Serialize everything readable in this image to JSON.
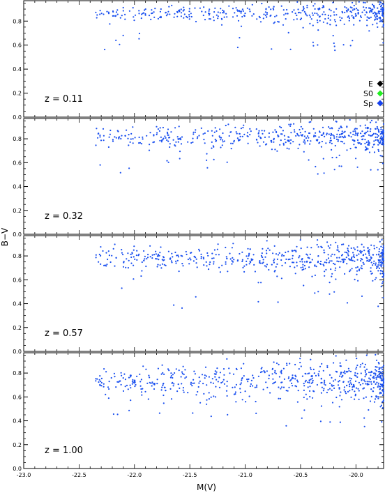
{
  "chart_data": {
    "type": "scatter",
    "xlabel": "M(V)",
    "ylabel": "B−V",
    "xlim": [
      -23.0,
      -19.75
    ],
    "ylim": [
      0.0,
      0.97
    ],
    "x_ticks": [
      "-23.0",
      "-22.5",
      "-22.0",
      "-21.5",
      "-21.0",
      "-20.5",
      "-20.0"
    ],
    "y_ticks": [
      "0.0",
      "0.2",
      "0.4",
      "0.6",
      "0.8",
      "1.0"
    ],
    "y_ticks_lower": [
      "0.0",
      "0.2",
      "0.4",
      "0.6",
      "0.8"
    ],
    "legend": {
      "placement": "right, top panel",
      "entries": [
        {
          "label": "E",
          "color": "#000000"
        },
        {
          "label": "S0",
          "color": "#22ee22"
        },
        {
          "label": "Sp",
          "color": "#1540ee"
        }
      ]
    },
    "colors": {
      "E": "#000000",
      "S0": "#22ee22",
      "Sp": "#1540ee",
      "field": "#1a50f0"
    },
    "panels": [
      {
        "label": "z = 0.11",
        "E": [
          [
            -22.72,
            0.88
          ],
          [
            -22.7,
            0.92
          ],
          [
            -22.66,
            0.9
          ],
          [
            -22.61,
            0.91
          ],
          [
            -22.56,
            0.92
          ],
          [
            -22.42,
            0.91
          ],
          [
            -22.36,
            0.9
          ],
          [
            -22.3,
            0.93
          ],
          [
            -22.21,
            0.92
          ],
          [
            -22.1,
            0.93
          ],
          [
            -21.98,
            0.92
          ],
          [
            -21.85,
            0.92
          ],
          [
            -21.74,
            0.93
          ],
          [
            -21.66,
            0.92
          ],
          [
            -21.56,
            0.9
          ],
          [
            -21.45,
            0.92
          ],
          [
            -21.35,
            0.93
          ],
          [
            -21.25,
            0.92
          ],
          [
            -21.13,
            0.91
          ],
          [
            -21.02,
            0.9
          ],
          [
            -20.96,
            0.93
          ],
          [
            -20.86,
            0.91
          ],
          [
            -20.75,
            0.9
          ],
          [
            -20.65,
            0.83
          ],
          [
            -20.55,
            0.88
          ],
          [
            -20.4,
            0.9
          ],
          [
            -20.3,
            0.92
          ],
          [
            -20.15,
            0.89
          ],
          [
            -20.0,
            0.9
          ],
          [
            -19.85,
            0.85
          ],
          [
            -21.2,
            0.78
          ],
          [
            -20.92,
            0.76
          ],
          [
            -20.45,
            0.75
          ]
        ],
        "S0": [
          [
            -22.6,
            0.86
          ],
          [
            -21.9,
            0.86
          ],
          [
            -21.55,
            0.86
          ],
          [
            -21.38,
            0.9
          ],
          [
            -21.05,
            0.84
          ],
          [
            -20.82,
            0.85
          ],
          [
            -20.58,
            0.86
          ],
          [
            -20.36,
            0.8
          ],
          [
            -20.1,
            0.83
          ],
          [
            -19.92,
            0.8
          ],
          [
            -20.78,
            0.77
          ]
        ],
        "Sp": [
          [
            -22.27,
            0.77
          ],
          [
            -21.93,
            0.76
          ],
          [
            -21.7,
            0.82
          ],
          [
            -21.4,
            0.84
          ],
          [
            -21.22,
            0.86
          ],
          [
            -21.05,
            0.8
          ],
          [
            -20.88,
            0.86
          ],
          [
            -20.73,
            0.87
          ],
          [
            -20.62,
            0.82
          ],
          [
            -20.45,
            0.84
          ],
          [
            -20.3,
            0.85
          ],
          [
            -20.18,
            0.87
          ],
          [
            -20.05,
            0.8
          ],
          [
            -19.9,
            0.82
          ],
          [
            -20.55,
            0.66
          ],
          [
            -21.6,
            0.87
          ],
          [
            -20.5,
            0.9
          ]
        ]
      },
      {
        "label": "z = 0.32",
        "E": [
          [
            -22.75,
            0.82
          ],
          [
            -22.68,
            0.7
          ],
          [
            -22.45,
            0.85
          ],
          [
            -22.38,
            0.88
          ],
          [
            -22.3,
            0.86
          ],
          [
            -22.22,
            0.87
          ],
          [
            -22.12,
            0.88
          ],
          [
            -22.03,
            0.86
          ],
          [
            -21.9,
            0.87
          ],
          [
            -21.8,
            0.88
          ],
          [
            -21.66,
            0.86
          ],
          [
            -21.52,
            0.85
          ],
          [
            -21.41,
            0.87
          ],
          [
            -21.3,
            0.86
          ],
          [
            -21.18,
            0.84
          ],
          [
            -21.06,
            0.86
          ],
          [
            -20.94,
            0.85
          ],
          [
            -20.83,
            0.85
          ],
          [
            -20.72,
            0.83
          ],
          [
            -20.6,
            0.82
          ],
          [
            -20.5,
            0.84
          ],
          [
            -20.4,
            0.86
          ],
          [
            -20.28,
            0.83
          ],
          [
            -20.18,
            0.82
          ],
          [
            -20.05,
            0.85
          ],
          [
            -19.92,
            0.84
          ],
          [
            -21.45,
            0.46
          ],
          [
            -21.05,
            0.72
          ],
          [
            -20.62,
            0.8
          ],
          [
            -20.0,
            0.78
          ]
        ],
        "S0": [
          [
            -22.0,
            0.88
          ],
          [
            -21.85,
            0.62
          ],
          [
            -21.57,
            0.82
          ],
          [
            -21.3,
            0.78
          ],
          [
            -21.1,
            0.84
          ],
          [
            -20.82,
            0.79
          ],
          [
            -20.57,
            0.7
          ],
          [
            -20.3,
            0.78
          ],
          [
            -20.15,
            0.8
          ],
          [
            -19.95,
            0.76
          ],
          [
            -21.7,
            0.68
          ]
        ],
        "Sp": [
          [
            -22.5,
            0.56
          ],
          [
            -21.95,
            0.82
          ],
          [
            -21.76,
            0.74
          ],
          [
            -21.62,
            0.71
          ],
          [
            -21.48,
            0.6
          ],
          [
            -21.36,
            0.79
          ],
          [
            -21.24,
            0.77
          ],
          [
            -21.12,
            0.76
          ],
          [
            -21.0,
            0.79
          ],
          [
            -20.86,
            0.74
          ],
          [
            -20.74,
            0.78
          ],
          [
            -20.62,
            0.8
          ],
          [
            -20.47,
            0.79
          ],
          [
            -20.33,
            0.81
          ],
          [
            -20.2,
            0.76
          ],
          [
            -20.06,
            0.83
          ],
          [
            -19.88,
            0.76
          ],
          [
            -21.04,
            0.6
          ],
          [
            -20.92,
            0.68
          ]
        ]
      },
      {
        "label": "z = 0.57",
        "E": [
          [
            -22.98,
            0.71
          ],
          [
            -22.92,
            0.62
          ],
          [
            -22.62,
            0.87
          ],
          [
            -22.4,
            0.76
          ],
          [
            -22.35,
            0.78
          ],
          [
            -22.28,
            0.85
          ],
          [
            -22.22,
            0.84
          ],
          [
            -22.15,
            0.83
          ],
          [
            -22.05,
            0.87
          ],
          [
            -21.92,
            0.86
          ],
          [
            -21.8,
            0.84
          ],
          [
            -21.7,
            0.82
          ],
          [
            -21.58,
            0.85
          ],
          [
            -21.46,
            0.82
          ],
          [
            -21.35,
            0.86
          ],
          [
            -21.25,
            0.81
          ],
          [
            -21.1,
            0.83
          ],
          [
            -20.98,
            0.8
          ],
          [
            -20.86,
            0.84
          ],
          [
            -20.75,
            0.79
          ],
          [
            -20.64,
            0.82
          ],
          [
            -20.52,
            0.8
          ],
          [
            -20.4,
            0.78
          ],
          [
            -20.28,
            0.77
          ],
          [
            -20.17,
            0.79
          ],
          [
            -20.05,
            0.76
          ],
          [
            -19.92,
            0.74
          ],
          [
            -21.44,
            0.46
          ],
          [
            -20.7,
            0.61
          ],
          [
            -21.0,
            0.72
          ],
          [
            -20.3,
            0.72
          ]
        ],
        "S0": [
          [
            -22.12,
            0.76
          ],
          [
            -21.8,
            0.78
          ],
          [
            -21.64,
            0.6
          ],
          [
            -21.5,
            0.74
          ],
          [
            -21.28,
            0.72
          ],
          [
            -21.08,
            0.79
          ],
          [
            -20.93,
            0.76
          ],
          [
            -20.71,
            0.75
          ],
          [
            -20.44,
            0.8
          ],
          [
            -20.14,
            0.78
          ],
          [
            -19.84,
            0.77
          ],
          [
            -21.3,
            0.65
          ]
        ],
        "Sp": [
          [
            -21.9,
            0.67
          ],
          [
            -21.78,
            0.71
          ],
          [
            -21.66,
            0.74
          ],
          [
            -21.54,
            0.8
          ],
          [
            -21.42,
            0.68
          ],
          [
            -21.3,
            0.76
          ],
          [
            -21.18,
            0.8
          ],
          [
            -21.06,
            0.72
          ],
          [
            -20.94,
            0.88
          ],
          [
            -20.82,
            0.8
          ],
          [
            -20.7,
            0.9
          ],
          [
            -20.58,
            0.77
          ],
          [
            -20.46,
            0.74
          ],
          [
            -20.34,
            0.77
          ],
          [
            -20.2,
            0.7
          ],
          [
            -21.7,
            0.62
          ],
          [
            -21.12,
            0.66
          ],
          [
            -20.88,
            0.6
          ],
          [
            -20.64,
            0.66
          ],
          [
            -21.58,
            0.82
          ],
          [
            -20.0,
            0.72
          ],
          [
            -19.86,
            0.78
          ]
        ]
      },
      {
        "label": "z = 1.00",
        "E": [
          [
            -22.7,
            0.55
          ],
          [
            -22.36,
            0.81
          ],
          [
            -22.3,
            0.78
          ],
          [
            -22.22,
            0.76
          ],
          [
            -22.15,
            0.8
          ],
          [
            -22.05,
            0.7
          ],
          [
            -21.95,
            0.68
          ],
          [
            -21.86,
            0.8
          ],
          [
            -21.72,
            0.75
          ],
          [
            -21.6,
            0.7
          ],
          [
            -21.46,
            0.72
          ],
          [
            -21.34,
            0.78
          ],
          [
            -21.24,
            0.82
          ],
          [
            -21.12,
            0.76
          ],
          [
            -21.0,
            0.7
          ],
          [
            -20.88,
            0.74
          ],
          [
            -20.75,
            0.76
          ],
          [
            -20.66,
            0.82
          ],
          [
            -20.54,
            0.7
          ],
          [
            -20.44,
            0.68
          ],
          [
            -20.3,
            0.66
          ],
          [
            -20.18,
            0.62
          ],
          [
            -20.05,
            0.72
          ],
          [
            -19.92,
            0.58
          ],
          [
            -21.4,
            0.44
          ],
          [
            -21.3,
            0.62
          ],
          [
            -20.95,
            0.58
          ],
          [
            -20.6,
            0.64
          ],
          [
            -22.08,
            0.74
          ],
          [
            -21.62,
            0.63
          ]
        ],
        "S0": [
          [
            -22.65,
            0.58
          ],
          [
            -22.45,
            0.57
          ],
          [
            -22.2,
            0.6
          ],
          [
            -22.0,
            0.56
          ],
          [
            -21.85,
            0.79
          ],
          [
            -21.66,
            0.75
          ],
          [
            -21.4,
            0.68
          ],
          [
            -21.3,
            0.72
          ],
          [
            -21.16,
            0.8
          ],
          [
            -21.05,
            0.7
          ],
          [
            -20.9,
            0.7
          ],
          [
            -20.7,
            0.66
          ],
          [
            -20.5,
            0.72
          ],
          [
            -20.25,
            0.62
          ],
          [
            -20.12,
            0.6
          ],
          [
            -21.95,
            0.62
          ]
        ],
        "Sp": [
          [
            -22.35,
            0.42
          ],
          [
            -22.28,
            0.55
          ],
          [
            -22.18,
            0.6
          ],
          [
            -22.08,
            0.65
          ],
          [
            -21.96,
            0.68
          ],
          [
            -21.84,
            0.78
          ],
          [
            -21.72,
            0.72
          ],
          [
            -21.6,
            0.66
          ],
          [
            -21.48,
            0.8
          ],
          [
            -21.36,
            0.74
          ],
          [
            -21.26,
            0.56
          ],
          [
            -21.16,
            0.83
          ],
          [
            -21.06,
            0.78
          ],
          [
            -20.94,
            0.82
          ],
          [
            -20.84,
            0.8
          ],
          [
            -20.72,
            0.76
          ],
          [
            -20.62,
            0.88
          ],
          [
            -20.5,
            0.72
          ],
          [
            -20.4,
            0.76
          ],
          [
            -20.28,
            0.7
          ],
          [
            -20.16,
            0.66
          ],
          [
            -20.04,
            0.7
          ],
          [
            -19.9,
            0.74
          ],
          [
            -19.8,
            0.76
          ],
          [
            -21.9,
            0.52
          ],
          [
            -21.58,
            0.48
          ],
          [
            -21.2,
            0.64
          ],
          [
            -20.86,
            0.6
          ],
          [
            -20.58,
            0.54
          ],
          [
            -22.1,
            0.76
          ],
          [
            -20.2,
            0.8
          ]
        ]
      }
    ]
  }
}
